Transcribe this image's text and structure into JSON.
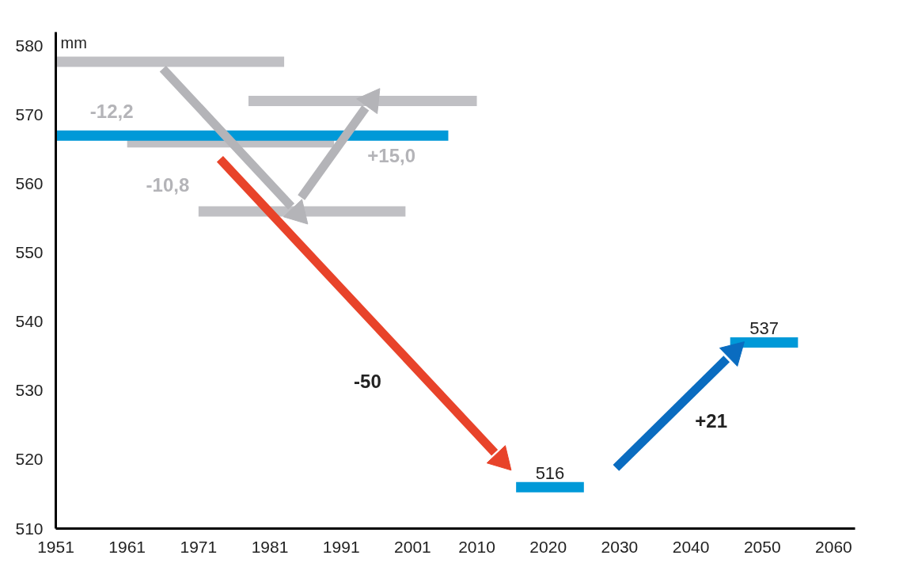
{
  "chart_data": {
    "type": "line",
    "ylabel": "mm",
    "xlim": [
      1951,
      2063
    ],
    "ylim": [
      510,
      582
    ],
    "xticks": [
      1951,
      1961,
      1971,
      1981,
      1991,
      2001,
      2010,
      2020,
      2030,
      2040,
      2050,
      2060
    ],
    "yticks": [
      510,
      520,
      530,
      540,
      550,
      560,
      570,
      580
    ],
    "grid": false,
    "series": [
      {
        "color": "#c0c0c4",
        "x": [
          1951,
          1983
        ],
        "values": [
          577.7,
          577.7
        ]
      },
      {
        "color": "#c0c0c4",
        "x": [
          1961,
          1990
        ],
        "values": [
          566,
          566
        ]
      },
      {
        "color": "#c0c0c4",
        "x": [
          1971,
          2000
        ],
        "values": [
          556,
          556
        ]
      },
      {
        "color": "#c0c0c4",
        "x": [
          1978,
          2010
        ],
        "values": [
          572,
          572
        ]
      },
      {
        "color": "#0099d8",
        "x": [
          1951,
          2006
        ],
        "values": [
          567,
          567
        ]
      },
      {
        "color": "#0099d8",
        "x": [
          2015.5,
          2025
        ],
        "values": [
          516,
          516
        ],
        "value_labels": [
          "516",
          null
        ]
      },
      {
        "color": "#0099d8",
        "x": [
          2045.5,
          2055
        ],
        "values": [
          537,
          537
        ],
        "value_labels": [
          "537",
          null
        ]
      },
      {
        "color": "#b4b4b8",
        "x": [
          1966,
          1984
        ],
        "values": [
          576.7,
          556.7
        ]
      },
      {
        "color": "#b4b4b8",
        "x": [
          1985.4,
          1994.4
        ],
        "values": [
          558,
          571
        ]
      },
      {
        "color": "#e8432a",
        "x": [
          1974,
          2012.5
        ],
        "values": [
          563.6,
          521
        ]
      },
      {
        "color": "#0a6cc0",
        "x": [
          2029.5,
          2045
        ],
        "values": [
          518.8,
          534.6
        ]
      },
      {
        "type": "scatter",
        "marker": "triangle",
        "colors": [
          "#b4b4b8",
          "#b4b4b8",
          "#e8432a",
          "#0a6cc0"
        ],
        "x": [
          1984.9,
          1995.2,
          2013.4,
          2046
        ],
        "values": [
          555.7,
          572.1,
          520,
          535.6
        ]
      }
    ],
    "annotations": [
      "-12,2",
      "-10,8",
      "+15,0",
      "-50",
      "+21"
    ]
  }
}
